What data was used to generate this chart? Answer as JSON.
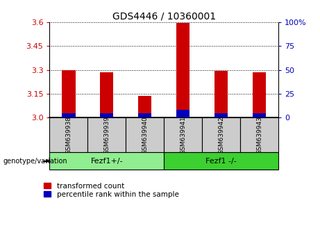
{
  "title": "GDS4446 / 10360001",
  "samples": [
    "GSM639938",
    "GSM639939",
    "GSM639940",
    "GSM639941",
    "GSM639942",
    "GSM639943"
  ],
  "transformed_count": [
    3.3,
    3.285,
    3.135,
    3.595,
    3.295,
    3.285
  ],
  "percentile_rank_pct": [
    5,
    5,
    5,
    8,
    5,
    5
  ],
  "y_min": 3.0,
  "y_max": 3.6,
  "y_ticks_left": [
    3.0,
    3.15,
    3.3,
    3.45,
    3.6
  ],
  "y_ticks_right": [
    0,
    25,
    50,
    75,
    100
  ],
  "y_ticks_right_labels": [
    "0",
    "25",
    "50",
    "75",
    "100%"
  ],
  "groups": [
    {
      "label": "Fezf1+/-",
      "count": 3,
      "color": "#90EE90"
    },
    {
      "label": "Fezf1 -/-",
      "count": 3,
      "color": "#3CD030"
    }
  ],
  "bar_color_red": "#CC0000",
  "bar_color_blue": "#0000BB",
  "bar_width": 0.35,
  "tick_color_left": "#CC0000",
  "tick_color_right": "#0000BB",
  "legend_red_label": "transformed count",
  "legend_blue_label": "percentile rank within the sample",
  "genotype_label": "genotype/variation",
  "xlabel_area_bg": "#CCCCCC",
  "group1_color": "#90EE90",
  "group2_color": "#3CD030"
}
